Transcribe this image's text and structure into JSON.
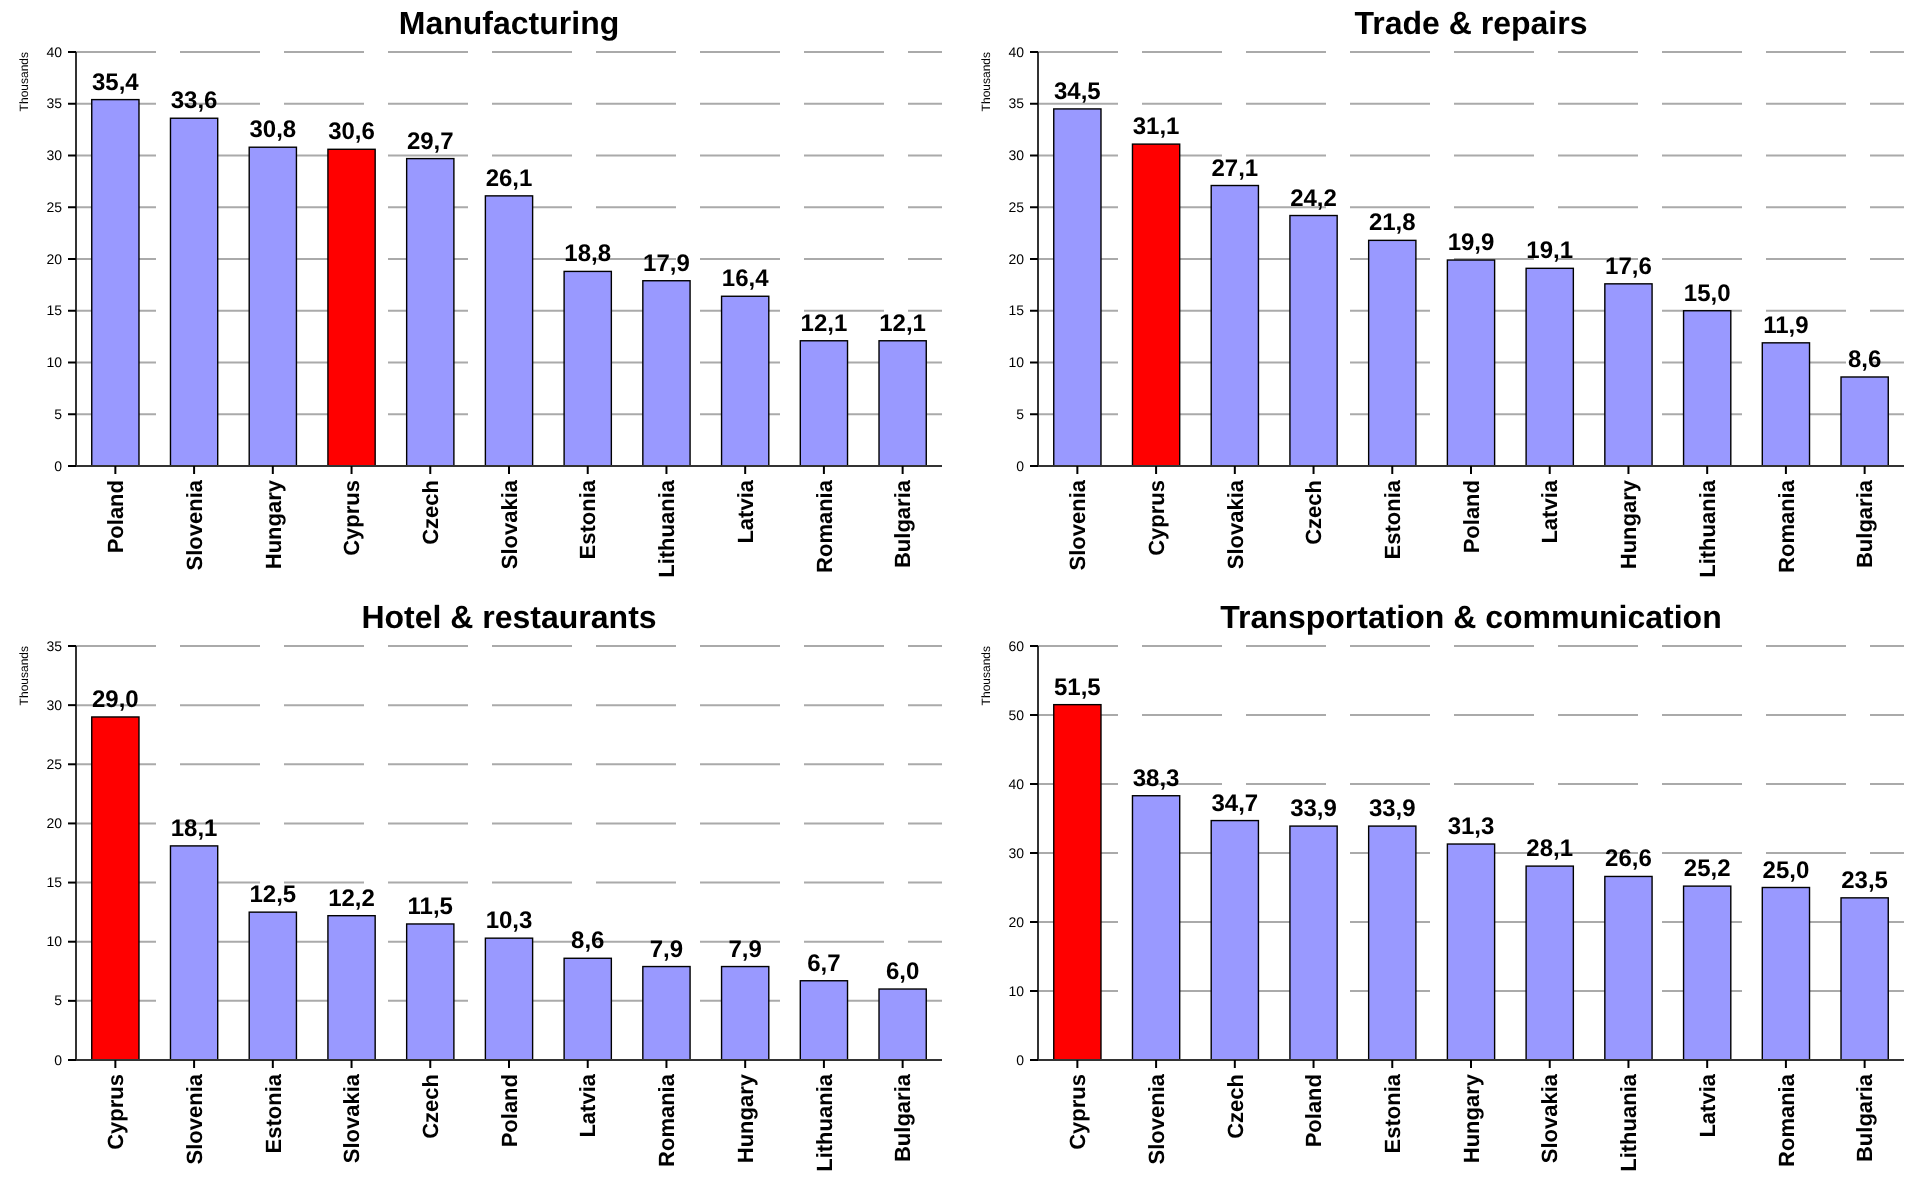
{
  "chart_data": [
    {
      "type": "bar",
      "title": "Manufacturing",
      "ylabel": "Thousands",
      "categories": [
        "Poland",
        "Slovenia",
        "Hungary",
        "Cyprus",
        "Czech",
        "Slovakia",
        "Estonia",
        "Lithuania",
        "Latvia",
        "Romania",
        "Bulgaria"
      ],
      "values": [
        35.4,
        33.6,
        30.8,
        30.6,
        29.7,
        26.1,
        18.8,
        17.9,
        16.4,
        12.1,
        12.1
      ],
      "value_labels": [
        "35,4",
        "33,6",
        "30,8",
        "30,6",
        "29,7",
        "26,1",
        "18,8",
        "17,9",
        "16,4",
        "12,1",
        "12,1"
      ],
      "colors": [
        "#9999ff",
        "#9999ff",
        "#9999ff",
        "#ff0000",
        "#9999ff",
        "#9999ff",
        "#9999ff",
        "#9999ff",
        "#9999ff",
        "#9999ff",
        "#9999ff"
      ],
      "ylim": [
        0,
        40
      ],
      "yticks": [
        0,
        5,
        10,
        15,
        20,
        25,
        30,
        35,
        40
      ],
      "grid": "y"
    },
    {
      "type": "bar",
      "title": "Trade & repairs",
      "ylabel": "Thousands",
      "categories": [
        "Slovenia",
        "Cyprus",
        "Slovakia",
        "Czech",
        "Estonia",
        "Poland",
        "Latvia",
        "Hungary",
        "Lithuania",
        "Romania",
        "Bulgaria"
      ],
      "values": [
        34.5,
        31.1,
        27.1,
        24.2,
        21.8,
        19.9,
        19.1,
        17.6,
        15.0,
        11.9,
        8.6
      ],
      "value_labels": [
        "34,5",
        "31,1",
        "27,1",
        "24,2",
        "21,8",
        "19,9",
        "19,1",
        "17,6",
        "15,0",
        "11,9",
        "8,6"
      ],
      "colors": [
        "#9999ff",
        "#ff0000",
        "#9999ff",
        "#9999ff",
        "#9999ff",
        "#9999ff",
        "#9999ff",
        "#9999ff",
        "#9999ff",
        "#9999ff",
        "#9999ff"
      ],
      "ylim": [
        0,
        40
      ],
      "yticks": [
        0,
        5,
        10,
        15,
        20,
        25,
        30,
        35,
        40
      ],
      "grid": "y"
    },
    {
      "type": "bar",
      "title": "Hotel & restaurants",
      "ylabel": "Thousands",
      "categories": [
        "Cyprus",
        "Slovenia",
        "Estonia",
        "Slovakia",
        "Czech",
        "Poland",
        "Latvia",
        "Romania",
        "Hungary",
        "Lithuania",
        "Bulgaria"
      ],
      "values": [
        29.0,
        18.1,
        12.5,
        12.2,
        11.5,
        10.3,
        8.6,
        7.9,
        7.9,
        6.7,
        6.0
      ],
      "value_labels": [
        "29,0",
        "18,1",
        "12,5",
        "12,2",
        "11,5",
        "10,3",
        "8,6",
        "7,9",
        "7,9",
        "6,7",
        "6,0"
      ],
      "colors": [
        "#ff0000",
        "#9999ff",
        "#9999ff",
        "#9999ff",
        "#9999ff",
        "#9999ff",
        "#9999ff",
        "#9999ff",
        "#9999ff",
        "#9999ff",
        "#9999ff"
      ],
      "ylim": [
        0,
        35
      ],
      "yticks": [
        0,
        5,
        10,
        15,
        20,
        25,
        30,
        35
      ],
      "grid": "y"
    },
    {
      "type": "bar",
      "title": "Transportation & communication",
      "ylabel": "Thousands",
      "categories": [
        "Cyprus",
        "Slovenia",
        "Czech",
        "Poland",
        "Estonia",
        "Hungary",
        "Slovakia",
        "Lithuania",
        "Latvia",
        "Romania",
        "Bulgaria"
      ],
      "values": [
        51.5,
        38.3,
        34.7,
        33.9,
        33.9,
        31.3,
        28.1,
        26.6,
        25.2,
        25.0,
        23.5
      ],
      "value_labels": [
        "51,5",
        "38,3",
        "34,7",
        "33,9",
        "33,9",
        "31,3",
        "28,1",
        "26,6",
        "25,2",
        "25,0",
        "23,5"
      ],
      "colors": [
        "#ff0000",
        "#9999ff",
        "#9999ff",
        "#9999ff",
        "#9999ff",
        "#9999ff",
        "#9999ff",
        "#9999ff",
        "#9999ff",
        "#9999ff",
        "#9999ff"
      ],
      "ylim": [
        0,
        60
      ],
      "yticks": [
        0,
        10,
        20,
        30,
        40,
        50,
        60
      ],
      "grid": "y"
    }
  ]
}
